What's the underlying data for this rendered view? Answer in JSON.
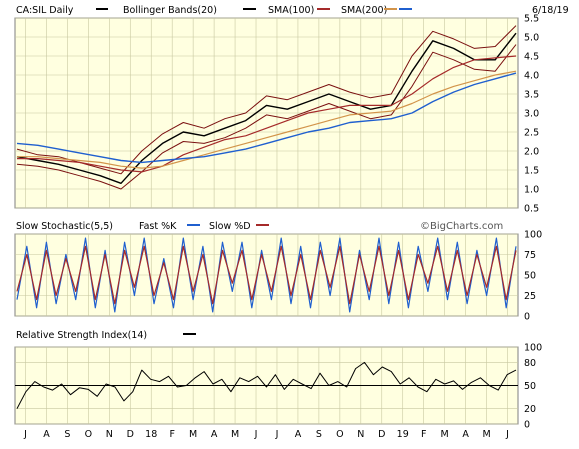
{
  "chart_data": [
    {
      "type": "line",
      "panel": "price",
      "symbol_label": "CA:SIL Daily",
      "date": "6/18/19",
      "grid": true,
      "legend": [
        {
          "name": "CA:SIL Daily",
          "color": "#000000"
        },
        {
          "name": "Bollinger Bands(20)",
          "color": "#000000"
        },
        {
          "name": "SMA(100)",
          "color": "#a52a2a"
        },
        {
          "name": "SMA(200)",
          "color": "#d2944a"
        },
        {
          "name": "",
          "color": "#1f5fcf"
        }
      ],
      "y_ticks": [
        "5.5",
        "5.0",
        "4.5",
        "4.0",
        "3.5",
        "3.0",
        "2.5",
        "2.0",
        "1.5",
        "1.0",
        "0.5"
      ],
      "ylim": [
        0.5,
        5.5
      ],
      "x": [
        "Jun-17",
        "Jul-17",
        "Aug-17",
        "Sep-17",
        "Oct-17",
        "Nov-17",
        "Dec-17",
        "Jan-18",
        "Feb-18",
        "Mar-18",
        "Apr-18",
        "May-18",
        "Jun-18",
        "Jul-18",
        "Aug-18",
        "Sep-18",
        "Oct-18",
        "Nov-18",
        "Dec-18",
        "Jan-19",
        "Feb-19",
        "Mar-19",
        "Apr-19",
        "May-19",
        "Jun-19"
      ],
      "series": [
        {
          "name": "CA:SIL Daily",
          "values": [
            1.85,
            1.75,
            1.65,
            1.5,
            1.35,
            1.15,
            1.75,
            2.2,
            2.5,
            2.4,
            2.6,
            2.8,
            3.2,
            3.1,
            3.3,
            3.5,
            3.3,
            3.1,
            3.2,
            4.1,
            4.9,
            4.7,
            4.4,
            4.4,
            5.1
          ]
        },
        {
          "name": "Bollinger upper",
          "values": [
            2.05,
            1.9,
            1.85,
            1.7,
            1.55,
            1.4,
            2.0,
            2.45,
            2.75,
            2.6,
            2.85,
            3.0,
            3.45,
            3.35,
            3.55,
            3.75,
            3.55,
            3.4,
            3.5,
            4.5,
            5.15,
            4.95,
            4.7,
            4.75,
            5.3
          ]
        },
        {
          "name": "Bollinger lower",
          "values": [
            1.65,
            1.6,
            1.5,
            1.35,
            1.2,
            1.0,
            1.45,
            1.95,
            2.25,
            2.2,
            2.35,
            2.6,
            2.95,
            2.85,
            3.05,
            3.25,
            3.05,
            2.85,
            2.95,
            3.7,
            4.6,
            4.4,
            4.15,
            4.1,
            4.8
          ]
        },
        {
          "name": "SMA(100)",
          "values": [
            1.8,
            1.8,
            1.75,
            1.7,
            1.6,
            1.5,
            1.45,
            1.6,
            1.9,
            2.1,
            2.3,
            2.4,
            2.6,
            2.8,
            3.0,
            3.1,
            3.2,
            3.2,
            3.2,
            3.5,
            3.9,
            4.2,
            4.4,
            4.45,
            4.5
          ]
        },
        {
          "name": "SMA(200)",
          "values": [
            1.85,
            1.85,
            1.8,
            1.75,
            1.7,
            1.6,
            1.55,
            1.6,
            1.75,
            1.9,
            2.05,
            2.2,
            2.35,
            2.5,
            2.65,
            2.8,
            2.95,
            3.0,
            3.05,
            3.25,
            3.5,
            3.7,
            3.85,
            4.0,
            4.1
          ]
        },
        {
          "name": "",
          "values": [
            2.2,
            2.15,
            2.05,
            1.95,
            1.85,
            1.75,
            1.7,
            1.75,
            1.8,
            1.85,
            1.95,
            2.05,
            2.2,
            2.35,
            2.5,
            2.6,
            2.75,
            2.8,
            2.85,
            3.0,
            3.3,
            3.55,
            3.75,
            3.9,
            4.05
          ]
        }
      ]
    },
    {
      "type": "line",
      "panel": "stochastic",
      "title": "Slow Stochastic(5,5)",
      "copyright": "©BigCharts.com",
      "grid": true,
      "legend": [
        {
          "name": "Fast %K",
          "color": "#1f5fcf"
        },
        {
          "name": "Slow %D",
          "color": "#a52a2a"
        }
      ],
      "y_ticks": [
        "100",
        "75",
        "50",
        "25",
        "0"
      ],
      "ylim": [
        0,
        100
      ],
      "series": [
        {
          "name": "Fast %K",
          "values": [
            20,
            85,
            10,
            90,
            15,
            75,
            20,
            95,
            10,
            80,
            5,
            90,
            25,
            95,
            15,
            70,
            10,
            95,
            20,
            85,
            5,
            90,
            30,
            90,
            10,
            80,
            20,
            95,
            15,
            85,
            10,
            90,
            25,
            95,
            5,
            80,
            20,
            95,
            15,
            90,
            10,
            85,
            30,
            95,
            20,
            90,
            15,
            80,
            25,
            95,
            10,
            85
          ]
        },
        {
          "name": "Slow %D",
          "values": [
            30,
            75,
            20,
            80,
            25,
            70,
            30,
            85,
            20,
            75,
            15,
            80,
            35,
            85,
            25,
            65,
            20,
            85,
            30,
            75,
            15,
            80,
            40,
            80,
            20,
            75,
            30,
            85,
            25,
            75,
            20,
            80,
            35,
            85,
            15,
            75,
            30,
            85,
            25,
            80,
            20,
            75,
            40,
            85,
            30,
            80,
            25,
            75,
            35,
            85,
            20,
            80
          ]
        }
      ]
    },
    {
      "type": "line",
      "panel": "rsi",
      "title": "Relative Strength Index(14)",
      "grid": true,
      "legend": [
        {
          "name": "Relative Strength Index(14)",
          "color": "#000000"
        }
      ],
      "y_ticks": [
        "100",
        "80",
        "50",
        "20",
        "0"
      ],
      "ylim": [
        0,
        100
      ],
      "series": [
        {
          "name": "Relative Strength Index(14)",
          "values": [
            20,
            42,
            55,
            48,
            44,
            52,
            38,
            47,
            45,
            36,
            52,
            48,
            30,
            42,
            70,
            58,
            55,
            62,
            48,
            50,
            60,
            68,
            52,
            58,
            42,
            60,
            55,
            62,
            48,
            64,
            45,
            58,
            52,
            46,
            66,
            50,
            55,
            48,
            72,
            80,
            64,
            74,
            68,
            52,
            60,
            48,
            42,
            58,
            52,
            56,
            45,
            54,
            60,
            50,
            44,
            64,
            70
          ]
        }
      ]
    }
  ],
  "x_axis": {
    "labels": [
      "J",
      "A",
      "S",
      "O",
      "N",
      "D",
      "18",
      "F",
      "M",
      "A",
      "M",
      "J",
      "J",
      "A",
      "S",
      "O",
      "N",
      "D",
      "19",
      "F",
      "M",
      "A",
      "M",
      "J"
    ]
  }
}
